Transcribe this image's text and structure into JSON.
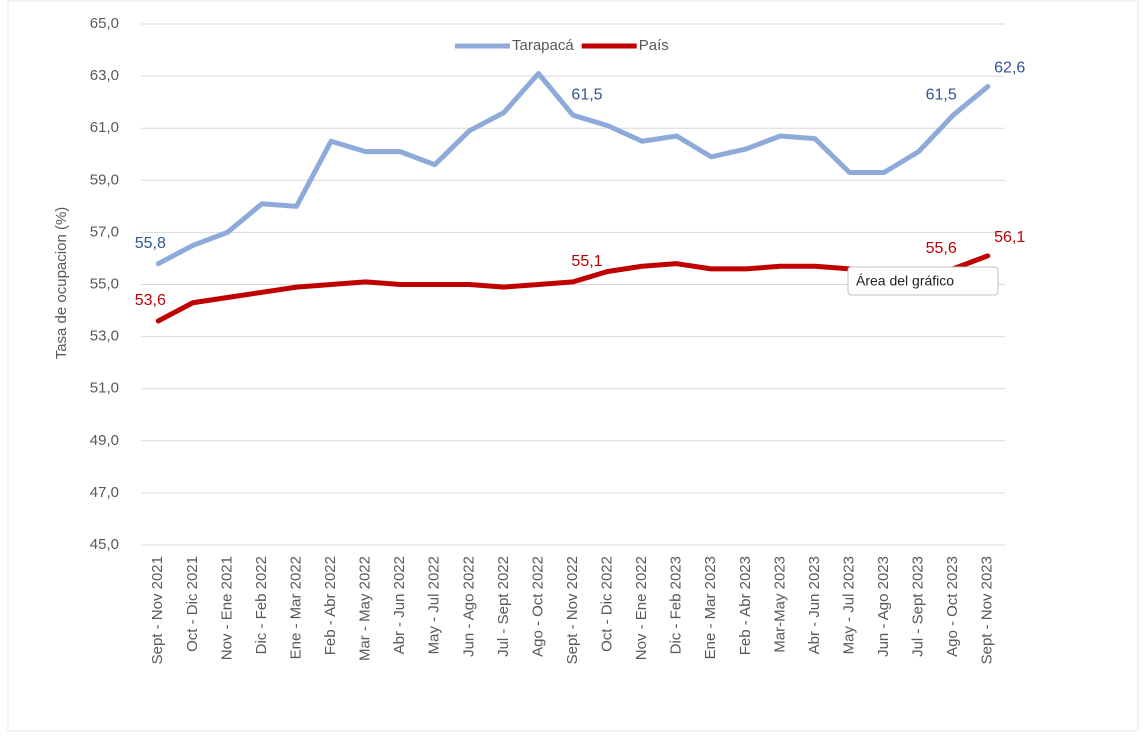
{
  "chart_data": {
    "type": "line",
    "y_label": "Tasa de ocupacion (%)",
    "annotation": "Área del gráfico",
    "categories": [
      "Sept - Nov 2021",
      "Oct - Dic 2021",
      "Nov - Ene 2021",
      "Dic - Feb 2022",
      "Ene - Mar 2022",
      "Feb - Abr 2022",
      "Mar - May 2022",
      "Abr - Jun 2022",
      "May - Jul 2022",
      "Jun - Ago 2022",
      "Jul - Sept 2022",
      "Ago - Oct 2022",
      "Sept - Nov 2022",
      "Oct - Dic 2022",
      "Nov - Ene 2022",
      "Dic - Feb 2023",
      "Ene - Mar 2023",
      "Feb - Abr 2023",
      "Mar-May 2023",
      "Abr - Jun 2023",
      "May - Jul 2023",
      "Jun - Ago 2023",
      "Jul - Sept 2023",
      "Ago - Oct 2023",
      "Sept - Nov 2023"
    ],
    "series": [
      {
        "name": "Tarapacá",
        "color": "#8eaadb",
        "values": [
          55.8,
          56.5,
          57.0,
          58.1,
          58.0,
          60.5,
          60.1,
          60.1,
          59.6,
          60.9,
          61.6,
          63.1,
          61.5,
          61.1,
          60.5,
          60.7,
          59.9,
          60.2,
          60.7,
          60.6,
          59.3,
          59.3,
          60.1,
          61.5,
          62.6
        ],
        "value_labels": [
          "55,8",
          null,
          null,
          null,
          null,
          null,
          null,
          null,
          null,
          null,
          null,
          null,
          "61,5",
          null,
          null,
          null,
          null,
          null,
          null,
          null,
          null,
          null,
          null,
          "61,5",
          "62,6"
        ]
      },
      {
        "name": "País",
        "color": "#c00000",
        "values": [
          53.6,
          54.3,
          54.5,
          54.7,
          54.9,
          55.0,
          55.1,
          55.0,
          55.0,
          55.0,
          54.9,
          55.0,
          55.1,
          55.5,
          55.7,
          55.8,
          55.6,
          55.6,
          55.7,
          55.7,
          55.6,
          55.5,
          55.5,
          55.6,
          56.1
        ],
        "value_labels": [
          "53,6",
          null,
          null,
          null,
          null,
          null,
          null,
          null,
          null,
          null,
          null,
          null,
          "55,1",
          null,
          null,
          null,
          null,
          null,
          null,
          null,
          null,
          null,
          null,
          "55,6",
          "56,1"
        ]
      }
    ],
    "ylim": [
      45,
      65
    ],
    "yticks": [
      {
        "value": 45,
        "label": "45,0"
      },
      {
        "value": 47,
        "label": "47,0"
      },
      {
        "value": 49,
        "label": "49,0"
      },
      {
        "value": 51,
        "label": "51,0"
      },
      {
        "value": 53,
        "label": "53,0"
      },
      {
        "value": 55,
        "label": "55,0"
      },
      {
        "value": 57,
        "label": "57,0"
      },
      {
        "value": 59,
        "label": "59,0"
      },
      {
        "value": 61,
        "label": "61,0"
      },
      {
        "value": 63,
        "label": "63,0"
      },
      {
        "value": 65,
        "label": "65,0"
      }
    ],
    "grid": true,
    "legend": "top"
  }
}
